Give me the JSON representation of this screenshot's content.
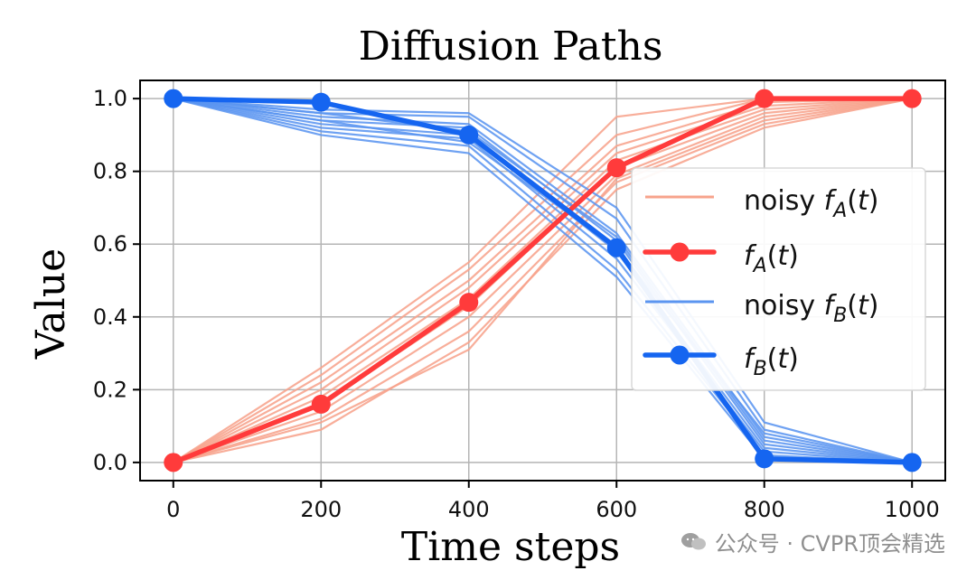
{
  "chart_data": {
    "type": "line",
    "title": "Diffusion Paths",
    "xlabel": "Time steps",
    "ylabel": "Value",
    "x": [
      0,
      200,
      400,
      600,
      800,
      1000
    ],
    "xlim": [
      -45,
      1045
    ],
    "ylim": [
      -0.05,
      1.05
    ],
    "xticks": [
      "0",
      "200",
      "400",
      "600",
      "800",
      "1000"
    ],
    "yticks": [
      "0.0",
      "0.2",
      "0.4",
      "0.6",
      "0.8",
      "1.0"
    ],
    "grid": true,
    "legend_position": "center-right",
    "colors": {
      "noisy_a": "#f7a38c",
      "main_a": "#ff3b3b",
      "noisy_b": "#5b95f0",
      "main_b": "#1565f0"
    },
    "series": [
      {
        "key": "fA",
        "name": "f_A(t)",
        "values": [
          0.0,
          0.16,
          0.44,
          0.81,
          1.0,
          1.0
        ],
        "marker": "circle"
      },
      {
        "key": "fB",
        "name": "f_B(t)",
        "values": [
          1.0,
          0.99,
          0.9,
          0.59,
          0.01,
          0.0
        ],
        "marker": "circle"
      }
    ],
    "noisy_series_a": [
      [
        0.0,
        0.09,
        0.33,
        0.75,
        0.92,
        1.0
      ],
      [
        0.0,
        0.12,
        0.36,
        0.77,
        0.93,
        1.0
      ],
      [
        0.0,
        0.14,
        0.4,
        0.79,
        0.95,
        1.0
      ],
      [
        0.0,
        0.16,
        0.43,
        0.81,
        0.96,
        1.0
      ],
      [
        0.0,
        0.18,
        0.45,
        0.83,
        0.97,
        1.0
      ],
      [
        0.0,
        0.2,
        0.48,
        0.85,
        0.98,
        1.0
      ],
      [
        0.0,
        0.22,
        0.5,
        0.87,
        0.99,
        1.0
      ],
      [
        0.0,
        0.24,
        0.53,
        0.9,
        1.0,
        1.0
      ],
      [
        0.0,
        0.26,
        0.55,
        0.95,
        1.0,
        1.0
      ],
      [
        0.0,
        0.11,
        0.31,
        0.78,
        0.94,
        1.0
      ]
    ],
    "noisy_series_b": [
      [
        1.0,
        0.97,
        0.96,
        0.7,
        0.11,
        0.0
      ],
      [
        1.0,
        0.96,
        0.95,
        0.67,
        0.09,
        0.0
      ],
      [
        1.0,
        0.95,
        0.93,
        0.63,
        0.07,
        0.0
      ],
      [
        1.0,
        0.94,
        0.92,
        0.61,
        0.05,
        0.0
      ],
      [
        1.0,
        0.93,
        0.9,
        0.58,
        0.04,
        0.0
      ],
      [
        1.0,
        0.92,
        0.89,
        0.56,
        0.03,
        0.0
      ],
      [
        1.0,
        0.91,
        0.87,
        0.53,
        0.02,
        0.0
      ],
      [
        1.0,
        0.9,
        0.85,
        0.51,
        0.01,
        0.0
      ],
      [
        1.0,
        0.94,
        0.88,
        0.59,
        0.08,
        0.0
      ],
      [
        1.0,
        0.96,
        0.91,
        0.62,
        0.06,
        0.0
      ]
    ],
    "legend": [
      {
        "kind": "line",
        "prefix": "noisy ",
        "math": "f_A(t)",
        "color_key": "noisy_a"
      },
      {
        "kind": "marker-line",
        "prefix": "",
        "math": "f_A(t)",
        "color_key": "main_a"
      },
      {
        "kind": "line",
        "prefix": "noisy ",
        "math": "f_B(t)",
        "color_key": "noisy_b"
      },
      {
        "kind": "marker-line",
        "prefix": "",
        "math": "f_B(t)",
        "color_key": "main_b"
      }
    ]
  },
  "watermark": {
    "text": "公众号 · CVPR顶会精选",
    "icon": "wechat-icon"
  }
}
